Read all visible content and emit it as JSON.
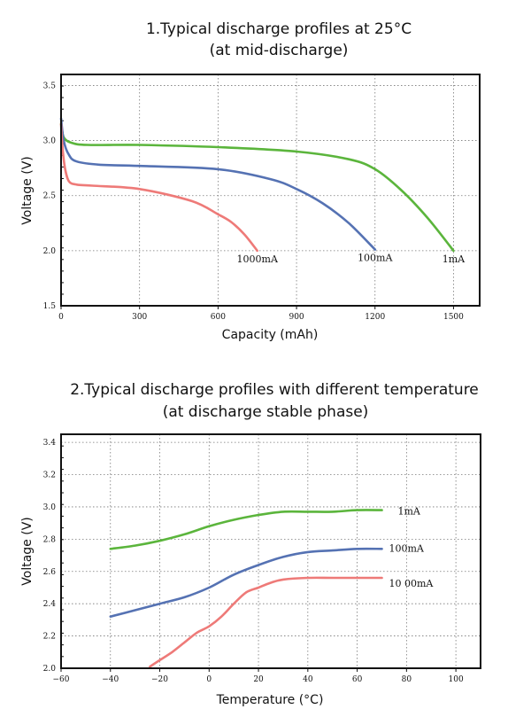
{
  "colors": {
    "green": "#5bb53c",
    "blue": "#5572b3",
    "red": "#ee7a78"
  },
  "chart_data": [
    {
      "type": "line",
      "title": "1.Typical discharge profiles at 25°C",
      "subtitle": "(at mid-discharge)",
      "xlabel": "Capacity (mAh)",
      "ylabel": "Voltage (V)",
      "xlim": [
        0,
        1600
      ],
      "ylim": [
        1.5,
        3.6
      ],
      "x_ticks": [
        "0",
        "300",
        "600",
        "900",
        "1200",
        "1500"
      ],
      "y_ticks": [
        "1.5",
        "2.0",
        "2.5",
        "3.0",
        "3.5"
      ],
      "grid": true,
      "series": [
        {
          "name": "1mA",
          "color": "green",
          "x": [
            0,
            10,
            40,
            100,
            300,
            600,
            900,
            1100,
            1200,
            1300,
            1400,
            1500
          ],
          "y": [
            3.15,
            3.03,
            2.98,
            2.96,
            2.96,
            2.94,
            2.9,
            2.83,
            2.74,
            2.55,
            2.3,
            2.0
          ]
        },
        {
          "name": "100mA",
          "color": "blue",
          "x": [
            0,
            10,
            30,
            60,
            150,
            300,
            600,
            800,
            900,
            1000,
            1100,
            1200
          ],
          "y": [
            3.2,
            3.0,
            2.87,
            2.81,
            2.78,
            2.77,
            2.74,
            2.65,
            2.56,
            2.43,
            2.25,
            2.01
          ]
        },
        {
          "name": "1000mA",
          "color": "red",
          "x": [
            0,
            5,
            15,
            30,
            60,
            120,
            300,
            500,
            600,
            650,
            700,
            750
          ],
          "y": [
            3.15,
            2.95,
            2.75,
            2.63,
            2.6,
            2.59,
            2.56,
            2.45,
            2.33,
            2.26,
            2.15,
            2.0
          ]
        }
      ]
    },
    {
      "type": "line",
      "title": "2.Typical discharge profiles with different temperature",
      "subtitle": "(at discharge stable phase)",
      "xlabel": "Temperature (°C)",
      "ylabel": "Voltage (V)",
      "xlim": [
        -60,
        110
      ],
      "ylim": [
        2.0,
        3.45
      ],
      "x_ticks": [
        "−60",
        "−40",
        "−20",
        "0",
        "20",
        "40",
        "60",
        "80",
        "100"
      ],
      "y_ticks": [
        "2.0",
        "2.2",
        "2.4",
        "2.6",
        "2.8",
        "3.0",
        "3.2",
        "3.4"
      ],
      "grid": true,
      "series": [
        {
          "name": "1mA",
          "color": "green",
          "x": [
            -40,
            -30,
            -20,
            -10,
            0,
            10,
            20,
            30,
            40,
            50,
            60,
            70
          ],
          "y": [
            2.74,
            2.76,
            2.79,
            2.83,
            2.88,
            2.92,
            2.95,
            2.97,
            2.97,
            2.97,
            2.98,
            2.98
          ]
        },
        {
          "name": "100mA",
          "color": "blue",
          "x": [
            -40,
            -30,
            -20,
            -10,
            0,
            10,
            20,
            30,
            40,
            50,
            60,
            70
          ],
          "y": [
            2.32,
            2.36,
            2.4,
            2.44,
            2.5,
            2.58,
            2.64,
            2.69,
            2.72,
            2.73,
            2.74,
            2.74
          ]
        },
        {
          "name": "10 00mA",
          "color": "red",
          "x": [
            -24,
            -20,
            -15,
            -10,
            -5,
            0,
            5,
            10,
            15,
            20,
            25,
            30,
            40,
            50,
            60,
            70
          ],
          "y": [
            2.01,
            2.05,
            2.1,
            2.16,
            2.22,
            2.26,
            2.32,
            2.4,
            2.47,
            2.5,
            2.53,
            2.55,
            2.56,
            2.56,
            2.56,
            2.56
          ]
        }
      ]
    }
  ]
}
